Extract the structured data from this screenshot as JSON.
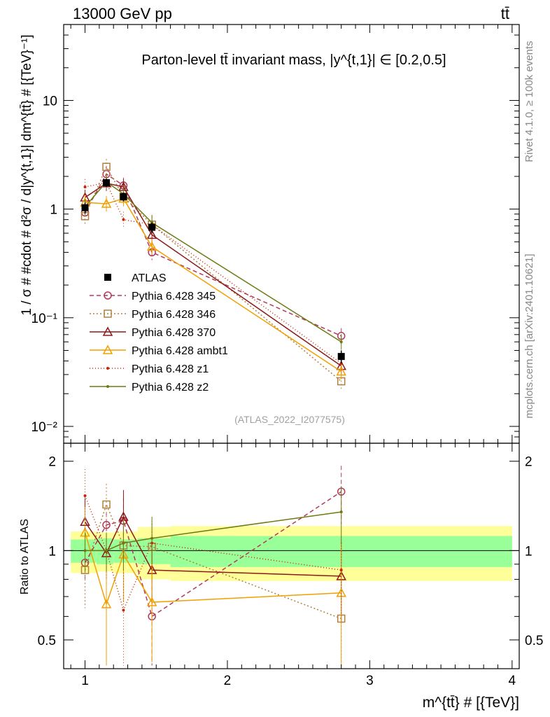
{
  "header": {
    "left": "13000 GeV pp",
    "right": "tt̄"
  },
  "side": {
    "rivet": "Rivet 4.1.0, ≥ 100k events",
    "mcplots": "mcplots.cern.ch [arXiv:2401.10621]"
  },
  "chart_data": {
    "type": "line",
    "title": "Parton-level tt̄ invariant mass, |y^{t,1}| ∈ [0.2,0.5]",
    "watermark": "(ATLAS_2022_I2077575)",
    "ylabel": "1 / σ # #cdot # d²σ / d|y^{t,1}| dm^{tt̄} # [{TeV}⁻¹]",
    "xlabel": "m^{tt̄} # [{TeV}]",
    "ratio_ylabel": "Ratio to ATLAS",
    "x_ticks": [
      "1",
      "2",
      "3",
      "4"
    ],
    "main_y_ticks": [
      "10⁻²",
      "10⁻¹",
      "1",
      "10"
    ],
    "ratio_y_ticks": [
      "0.5",
      "1",
      "2"
    ],
    "xlim": [
      0.85,
      4.05
    ],
    "ylim_main": [
      0.007,
      50
    ],
    "ylim_ratio": [
      0.4,
      2.3
    ],
    "x": [
      1.0,
      1.15,
      1.27,
      1.47,
      2.8
    ],
    "data": {
      "name": "ATLAS",
      "values": [
        1.03,
        1.75,
        1.3,
        0.68,
        0.044
      ],
      "err": [
        0.12,
        0.15,
        0.12,
        0.07,
        0.006
      ],
      "bins": [
        [
          0.9,
          1.08
        ],
        [
          1.08,
          1.2
        ],
        [
          1.2,
          1.37
        ],
        [
          1.37,
          1.6
        ],
        [
          1.6,
          4.0
        ]
      ],
      "ratio_band_inner": [
        0.09,
        0.1,
        0.09,
        0.1,
        0.12
      ],
      "ratio_band_outer": [
        0.16,
        0.15,
        0.16,
        0.2,
        0.21
      ]
    },
    "series": [
      {
        "name": "Pythia 6.428 345",
        "color": "#b03a5a",
        "dash": "6,4",
        "marker": "circle",
        "values": [
          0.93,
          2.1,
          1.65,
          0.4,
          0.068
        ],
        "ratio": [
          0.91,
          1.22,
          1.26,
          0.6,
          1.58
        ],
        "ratio_err": [
          0.12,
          0.12,
          0.25,
          0.2,
          0.35
        ]
      },
      {
        "name": "Pythia 6.428 346",
        "color": "#b08040",
        "dash": "2,3",
        "marker": "square",
        "values": [
          0.86,
          2.45,
          1.3,
          0.72,
          0.026
        ],
        "ratio": [
          0.86,
          1.43,
          1.04,
          1.03,
          0.59
        ],
        "ratio_err": [
          0.22,
          0.25,
          0.2,
          0.2,
          0.25
        ]
      },
      {
        "name": "Pythia 6.428 370",
        "color": "#8b1a1a",
        "dash": "",
        "marker": "triangle",
        "values": [
          1.28,
          1.73,
          1.6,
          0.58,
          0.036
        ],
        "ratio": [
          1.25,
          0.98,
          1.3,
          0.86,
          0.82
        ],
        "ratio_err": [
          0.25,
          0.12,
          0.3,
          0.2,
          0.25
        ]
      },
      {
        "name": "Pythia 6.428 ambt1",
        "color": "#f0a000",
        "dash": "",
        "marker": "triangle",
        "values": [
          1.15,
          1.12,
          1.25,
          0.45,
          0.032
        ],
        "ratio": [
          1.15,
          0.66,
          0.97,
          0.67,
          0.72
        ],
        "ratio_err": [
          0.25,
          0.3,
          0.3,
          0.25,
          0.35
        ]
      },
      {
        "name": "Pythia 6.428 z1",
        "color": "#cc2200",
        "dash": "1,3",
        "marker": "dot",
        "values": [
          1.6,
          1.75,
          0.8,
          0.72,
          0.038
        ],
        "ratio": [
          1.53,
          1.0,
          0.63,
          1.06,
          0.86
        ],
        "ratio_err": [
          0.35,
          0.2,
          0.25,
          0.2,
          0.25
        ]
      },
      {
        "name": "Pythia 6.428 z2",
        "color": "#6e7a10",
        "dash": "",
        "marker": "dot",
        "values": [
          1.05,
          1.78,
          1.38,
          0.75,
          0.06
        ],
        "ratio": [
          1.0,
          1.0,
          1.06,
          1.1,
          1.35
        ],
        "ratio_err": [
          0.15,
          0.15,
          0.2,
          0.2,
          0.3
        ]
      }
    ]
  }
}
